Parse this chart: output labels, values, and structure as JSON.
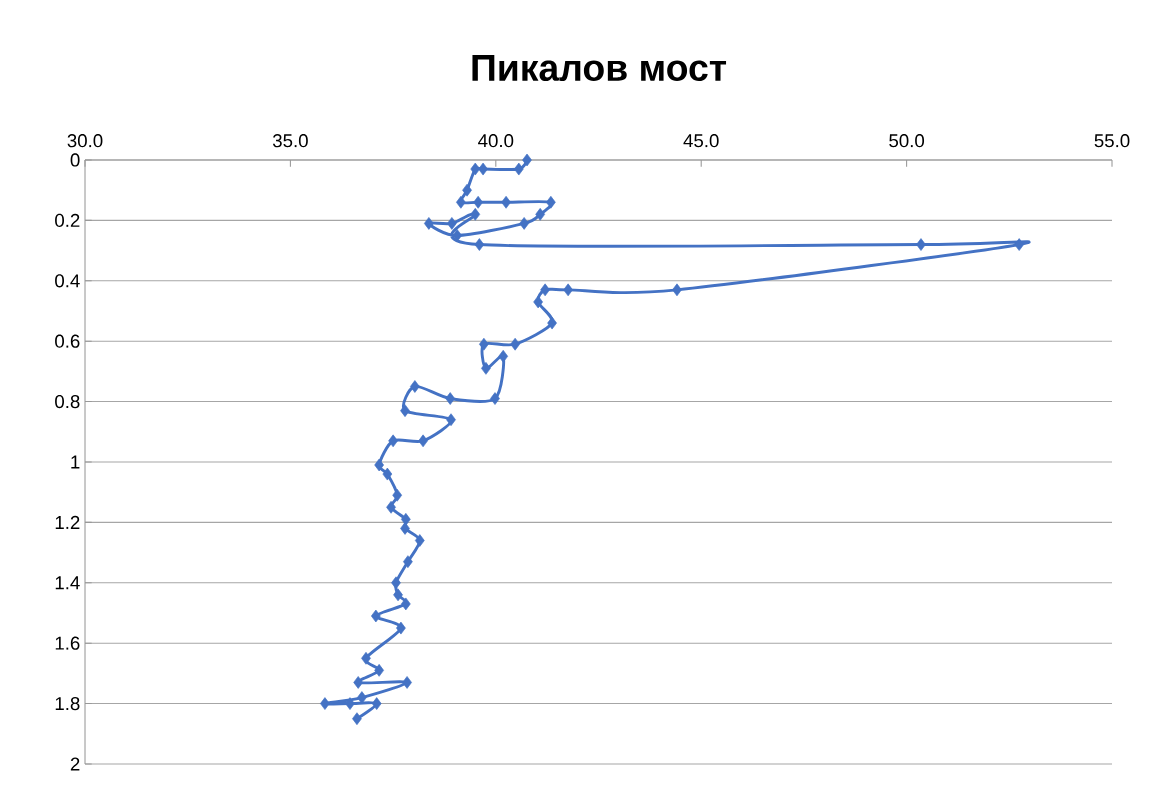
{
  "chart_data": {
    "type": "line",
    "title": "Пикалов мост",
    "color": "#4472c4",
    "marker": "diamond",
    "grid": "y",
    "x": [
      40.76,
      40.56,
      39.69,
      39.5,
      39.3,
      39.15,
      39.57,
      40.25,
      41.34,
      41.08,
      40.69,
      39.06,
      38.37,
      38.93,
      39.5,
      39.6,
      50.35,
      52.74,
      44.41,
      41.76,
      41.2,
      41.03,
      41.37,
      40.47,
      39.71,
      39.76,
      40.18,
      39.98,
      38.89,
      38.03,
      37.79,
      38.91,
      38.23,
      37.5,
      37.16,
      37.36,
      37.6,
      37.45,
      37.81,
      37.79,
      38.15,
      37.86,
      37.57,
      37.62,
      37.81,
      37.08,
      37.69,
      36.84,
      37.16,
      36.65,
      37.84,
      36.74,
      35.84,
      36.45,
      37.1,
      36.62
    ],
    "values": [
      0.0,
      0.03,
      0.03,
      0.03,
      0.1,
      0.14,
      0.14,
      0.14,
      0.14,
      0.18,
      0.21,
      0.25,
      0.21,
      0.21,
      0.18,
      0.28,
      0.28,
      0.28,
      0.43,
      0.43,
      0.43,
      0.47,
      0.54,
      0.61,
      0.61,
      0.69,
      0.65,
      0.79,
      0.79,
      0.75,
      0.83,
      0.86,
      0.93,
      0.93,
      1.01,
      1.04,
      1.11,
      1.15,
      1.19,
      1.22,
      1.26,
      1.33,
      1.4,
      1.44,
      1.47,
      1.51,
      1.55,
      1.65,
      1.69,
      1.73,
      1.73,
      1.78,
      1.8,
      1.8,
      1.8,
      1.85
    ],
    "xlim": [
      30,
      55
    ],
    "xticks": [
      {
        "value": 30,
        "label": "30.0"
      },
      {
        "value": 35,
        "label": "35.0"
      },
      {
        "value": 40,
        "label": "40.0"
      },
      {
        "value": 45,
        "label": "45.0"
      },
      {
        "value": 50,
        "label": "50.0"
      },
      {
        "value": 55,
        "label": "55.0"
      }
    ],
    "ylim": [
      2,
      0
    ],
    "yticks": [
      0,
      0.2,
      0.4,
      0.6,
      0.8,
      1,
      1.2,
      1.4,
      1.6,
      1.8,
      2
    ]
  }
}
